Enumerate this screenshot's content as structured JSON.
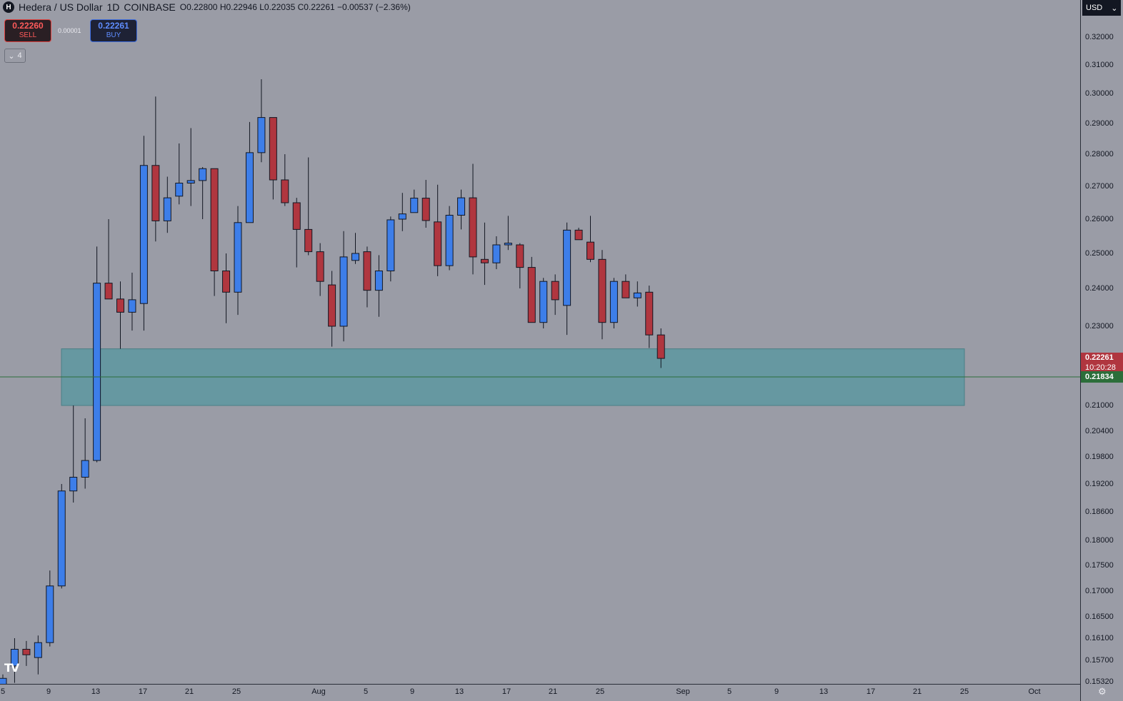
{
  "header": {
    "symbol_icon": "H",
    "title": "Hedera / US Dollar",
    "interval": "1D",
    "exchange": "COINBASE",
    "open": "O0.22800",
    "high": "H0.22946",
    "low": "L0.22035",
    "close": "C0.22261",
    "change": "−0.00537 (−2.36%)"
  },
  "trade": {
    "sell_price": "0.22260",
    "sell_label": "SELL",
    "spread": "0.00001",
    "buy_price": "0.22261",
    "buy_label": "BUY"
  },
  "indicators_toggle": {
    "icon": "chevron-down-icon",
    "count": "4"
  },
  "currency": {
    "label": "USD"
  },
  "price_tags": {
    "last_price": "0.22261",
    "countdown": "10:20:28",
    "line_price": "0.21834"
  },
  "colors": {
    "up": "#3d7ee9",
    "down": "#b0363f",
    "zone": "#5d98a0",
    "horizontal_line": "#2c6e3a",
    "background": "#9a9ca6"
  },
  "chart_data": {
    "type": "candlestick",
    "y_axis_labels": [
      "0.32000",
      "0.31000",
      "0.30000",
      "0.29000",
      "0.28000",
      "0.27000",
      "0.26000",
      "0.25000",
      "0.24000",
      "0.23000",
      "0.21000",
      "0.20400",
      "0.19800",
      "0.19200",
      "0.18600",
      "0.18000",
      "0.17500",
      "0.17000",
      "0.16500",
      "0.16100",
      "0.15700",
      "0.15320"
    ],
    "x_axis_labels": [
      "5",
      "9",
      "13",
      "17",
      "21",
      "25",
      "Aug",
      "5",
      "9",
      "13",
      "17",
      "21",
      "25",
      "Sep",
      "5",
      "9",
      "13",
      "17",
      "21",
      "25",
      "Oct"
    ],
    "horizontal_line": 0.21834,
    "zone": {
      "top": 0.2248,
      "bottom": 0.21
    },
    "candles": [
      {
        "o": 0.152,
        "h": 0.1545,
        "l": 0.151,
        "c": 0.1538
      },
      {
        "o": 0.156,
        "h": 0.161,
        "l": 0.153,
        "c": 0.159
      },
      {
        "o": 0.159,
        "h": 0.1605,
        "l": 0.156,
        "c": 0.158
      },
      {
        "o": 0.1575,
        "h": 0.1615,
        "l": 0.1545,
        "c": 0.1602
      },
      {
        "o": 0.1602,
        "h": 0.174,
        "l": 0.1595,
        "c": 0.171
      },
      {
        "o": 0.171,
        "h": 0.192,
        "l": 0.1705,
        "c": 0.1905
      },
      {
        "o": 0.1905,
        "h": 0.21,
        "l": 0.188,
        "c": 0.1935
      },
      {
        "o": 0.1935,
        "h": 0.207,
        "l": 0.191,
        "c": 0.1972
      },
      {
        "o": 0.1972,
        "h": 0.252,
        "l": 0.1968,
        "c": 0.2415
      },
      {
        "o": 0.2415,
        "h": 0.26,
        "l": 0.2372,
        "c": 0.2372
      },
      {
        "o": 0.2372,
        "h": 0.242,
        "l": 0.2248,
        "c": 0.2337
      },
      {
        "o": 0.2337,
        "h": 0.2445,
        "l": 0.229,
        "c": 0.237
      },
      {
        "o": 0.236,
        "h": 0.286,
        "l": 0.229,
        "c": 0.2765
      },
      {
        "o": 0.2765,
        "h": 0.299,
        "l": 0.2535,
        "c": 0.2595
      },
      {
        "o": 0.2595,
        "h": 0.273,
        "l": 0.256,
        "c": 0.2665
      },
      {
        "o": 0.267,
        "h": 0.2835,
        "l": 0.2645,
        "c": 0.271
      },
      {
        "o": 0.271,
        "h": 0.2885,
        "l": 0.264,
        "c": 0.2718
      },
      {
        "o": 0.2718,
        "h": 0.276,
        "l": 0.26,
        "c": 0.2755
      },
      {
        "o": 0.2755,
        "h": 0.2755,
        "l": 0.238,
        "c": 0.245
      },
      {
        "o": 0.245,
        "h": 0.25,
        "l": 0.2308,
        "c": 0.239
      },
      {
        "o": 0.239,
        "h": 0.264,
        "l": 0.233,
        "c": 0.259
      },
      {
        "o": 0.259,
        "h": 0.2905,
        "l": 0.259,
        "c": 0.2805
      },
      {
        "o": 0.2805,
        "h": 0.305,
        "l": 0.2775,
        "c": 0.292
      },
      {
        "o": 0.292,
        "h": 0.292,
        "l": 0.266,
        "c": 0.272
      },
      {
        "o": 0.272,
        "h": 0.28,
        "l": 0.264,
        "c": 0.265
      },
      {
        "o": 0.265,
        "h": 0.2665,
        "l": 0.246,
        "c": 0.257
      },
      {
        "o": 0.257,
        "h": 0.279,
        "l": 0.2495,
        "c": 0.2505
      },
      {
        "o": 0.2505,
        "h": 0.253,
        "l": 0.238,
        "c": 0.242
      },
      {
        "o": 0.241,
        "h": 0.245,
        "l": 0.2253,
        "c": 0.23
      },
      {
        "o": 0.23,
        "h": 0.2565,
        "l": 0.2265,
        "c": 0.249
      },
      {
        "o": 0.248,
        "h": 0.256,
        "l": 0.247,
        "c": 0.25
      },
      {
        "o": 0.2505,
        "h": 0.252,
        "l": 0.235,
        "c": 0.2395
      },
      {
        "o": 0.2395,
        "h": 0.2495,
        "l": 0.2325,
        "c": 0.245
      },
      {
        "o": 0.245,
        "h": 0.2608,
        "l": 0.242,
        "c": 0.2598
      },
      {
        "o": 0.26,
        "h": 0.268,
        "l": 0.2565,
        "c": 0.2616
      },
      {
        "o": 0.262,
        "h": 0.269,
        "l": 0.262,
        "c": 0.2664
      },
      {
        "o": 0.2664,
        "h": 0.272,
        "l": 0.2575,
        "c": 0.2596
      },
      {
        "o": 0.2592,
        "h": 0.2705,
        "l": 0.2435,
        "c": 0.2465
      },
      {
        "o": 0.2465,
        "h": 0.264,
        "l": 0.2452,
        "c": 0.2612
      },
      {
        "o": 0.2612,
        "h": 0.269,
        "l": 0.257,
        "c": 0.2665
      },
      {
        "o": 0.2665,
        "h": 0.277,
        "l": 0.244,
        "c": 0.249
      },
      {
        "o": 0.2483,
        "h": 0.259,
        "l": 0.241,
        "c": 0.2473
      },
      {
        "o": 0.2473,
        "h": 0.255,
        "l": 0.2455,
        "c": 0.2525
      },
      {
        "o": 0.2525,
        "h": 0.261,
        "l": 0.251,
        "c": 0.253
      },
      {
        "o": 0.2525,
        "h": 0.253,
        "l": 0.24,
        "c": 0.246
      },
      {
        "o": 0.246,
        "h": 0.249,
        "l": 0.231,
        "c": 0.231
      },
      {
        "o": 0.231,
        "h": 0.243,
        "l": 0.2295,
        "c": 0.242
      },
      {
        "o": 0.242,
        "h": 0.244,
        "l": 0.233,
        "c": 0.237
      },
      {
        "o": 0.2355,
        "h": 0.259,
        "l": 0.228,
        "c": 0.2568
      },
      {
        "o": 0.2568,
        "h": 0.2575,
        "l": 0.254,
        "c": 0.254
      },
      {
        "o": 0.2533,
        "h": 0.261,
        "l": 0.2475,
        "c": 0.2483
      },
      {
        "o": 0.2483,
        "h": 0.251,
        "l": 0.227,
        "c": 0.231
      },
      {
        "o": 0.231,
        "h": 0.243,
        "l": 0.2295,
        "c": 0.242
      },
      {
        "o": 0.242,
        "h": 0.244,
        "l": 0.2375,
        "c": 0.2375
      },
      {
        "o": 0.2375,
        "h": 0.242,
        "l": 0.2352,
        "c": 0.2388
      },
      {
        "o": 0.239,
        "h": 0.2408,
        "l": 0.225,
        "c": 0.228
      },
      {
        "o": 0.228,
        "h": 0.2295,
        "l": 0.2204,
        "c": 0.2226
      }
    ]
  }
}
